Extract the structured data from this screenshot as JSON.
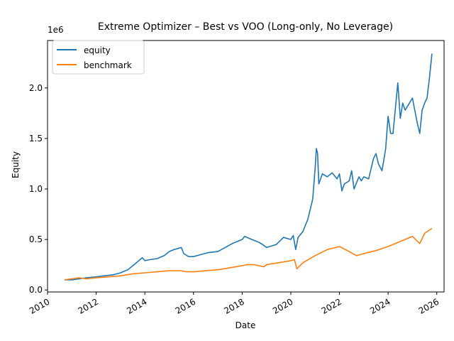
{
  "chart_data": {
    "type": "line",
    "title": "Extreme Optimizer – Best vs VOO (Long-only, No Leverage)",
    "xlabel": "Date",
    "ylabel": "Equity",
    "y_offset_label": "1e6",
    "xlim": [
      2010.0,
      2026.3
    ],
    "ylim": [
      -0.02,
      2.47
    ],
    "y_scale": 1000000,
    "grid": false,
    "legend_position": "top-left",
    "x_ticks": [
      {
        "value": 2010,
        "label": "2010"
      },
      {
        "value": 2012,
        "label": "2012"
      },
      {
        "value": 2014,
        "label": "2014"
      },
      {
        "value": 2016,
        "label": "2016"
      },
      {
        "value": 2018,
        "label": "2018"
      },
      {
        "value": 2020,
        "label": "2020"
      },
      {
        "value": 2022,
        "label": "2022"
      },
      {
        "value": 2024,
        "label": "2024"
      },
      {
        "value": 2026,
        "label": "2026"
      }
    ],
    "y_ticks": [
      {
        "value": 0.0,
        "label": "0.0"
      },
      {
        "value": 0.5,
        "label": "0.5"
      },
      {
        "value": 1.0,
        "label": "1.0"
      },
      {
        "value": 1.5,
        "label": "1.5"
      },
      {
        "value": 2.0,
        "label": "2.0"
      }
    ],
    "series": [
      {
        "name": "equity",
        "color": "#1f77b4",
        "x": [
          2010.7,
          2011.0,
          2011.3,
          2011.6,
          2012.0,
          2012.3,
          2012.7,
          2013.0,
          2013.3,
          2013.6,
          2013.9,
          2014.0,
          2014.2,
          2014.5,
          2014.8,
          2015.0,
          2015.2,
          2015.5,
          2015.6,
          2015.8,
          2016.0,
          2016.3,
          2016.6,
          2017.0,
          2017.3,
          2017.6,
          2018.0,
          2018.1,
          2018.4,
          2018.7,
          2018.9,
          2019.0,
          2019.4,
          2019.7,
          2020.0,
          2020.1,
          2020.2,
          2020.3,
          2020.5,
          2020.7,
          2020.9,
          2021.0,
          2021.05,
          2021.1,
          2021.15,
          2021.3,
          2021.5,
          2021.7,
          2021.9,
          2022.0,
          2022.1,
          2022.2,
          2022.4,
          2022.5,
          2022.6,
          2022.8,
          2022.9,
          2023.0,
          2023.2,
          2023.4,
          2023.5,
          2023.6,
          2023.75,
          2023.9,
          2024.0,
          2024.1,
          2024.2,
          2024.3,
          2024.4,
          2024.5,
          2024.6,
          2024.7,
          2024.8,
          2025.0,
          2025.2,
          2025.3,
          2025.4,
          2025.5,
          2025.6,
          2025.7,
          2025.8
        ],
        "values": [
          0.1,
          0.1,
          0.11,
          0.12,
          0.13,
          0.14,
          0.15,
          0.17,
          0.2,
          0.26,
          0.32,
          0.29,
          0.3,
          0.31,
          0.34,
          0.38,
          0.4,
          0.42,
          0.36,
          0.33,
          0.33,
          0.35,
          0.37,
          0.38,
          0.42,
          0.46,
          0.5,
          0.53,
          0.5,
          0.47,
          0.44,
          0.42,
          0.45,
          0.52,
          0.5,
          0.54,
          0.4,
          0.52,
          0.58,
          0.7,
          0.9,
          1.2,
          1.4,
          1.35,
          1.05,
          1.15,
          1.12,
          1.16,
          1.1,
          1.15,
          0.98,
          1.05,
          1.08,
          1.18,
          1.0,
          1.12,
          1.08,
          1.12,
          1.1,
          1.3,
          1.35,
          1.25,
          1.18,
          1.4,
          1.72,
          1.55,
          1.55,
          1.8,
          2.05,
          1.7,
          1.85,
          1.78,
          1.82,
          1.9,
          1.65,
          1.55,
          1.78,
          1.85,
          1.9,
          2.1,
          2.34
        ]
      },
      {
        "name": "benchmark",
        "color": "#ff7f0e",
        "x": [
          2010.7,
          2011.0,
          2011.3,
          2011.6,
          2012.0,
          2012.5,
          2013.0,
          2013.5,
          2014.0,
          2014.5,
          2015.0,
          2015.5,
          2015.7,
          2016.0,
          2016.5,
          2017.0,
          2017.5,
          2018.0,
          2018.2,
          2018.5,
          2018.9,
          2019.0,
          2019.5,
          2020.0,
          2020.15,
          2020.25,
          2020.5,
          2021.0,
          2021.5,
          2022.0,
          2022.4,
          2022.7,
          2023.0,
          2023.5,
          2024.0,
          2024.5,
          2025.0,
          2025.3,
          2025.5,
          2025.8
        ],
        "values": [
          0.1,
          0.11,
          0.12,
          0.11,
          0.12,
          0.13,
          0.14,
          0.16,
          0.17,
          0.18,
          0.19,
          0.19,
          0.18,
          0.18,
          0.19,
          0.2,
          0.22,
          0.24,
          0.25,
          0.25,
          0.23,
          0.25,
          0.27,
          0.29,
          0.3,
          0.21,
          0.27,
          0.34,
          0.4,
          0.43,
          0.38,
          0.34,
          0.36,
          0.39,
          0.43,
          0.48,
          0.53,
          0.46,
          0.56,
          0.61
        ]
      }
    ]
  }
}
